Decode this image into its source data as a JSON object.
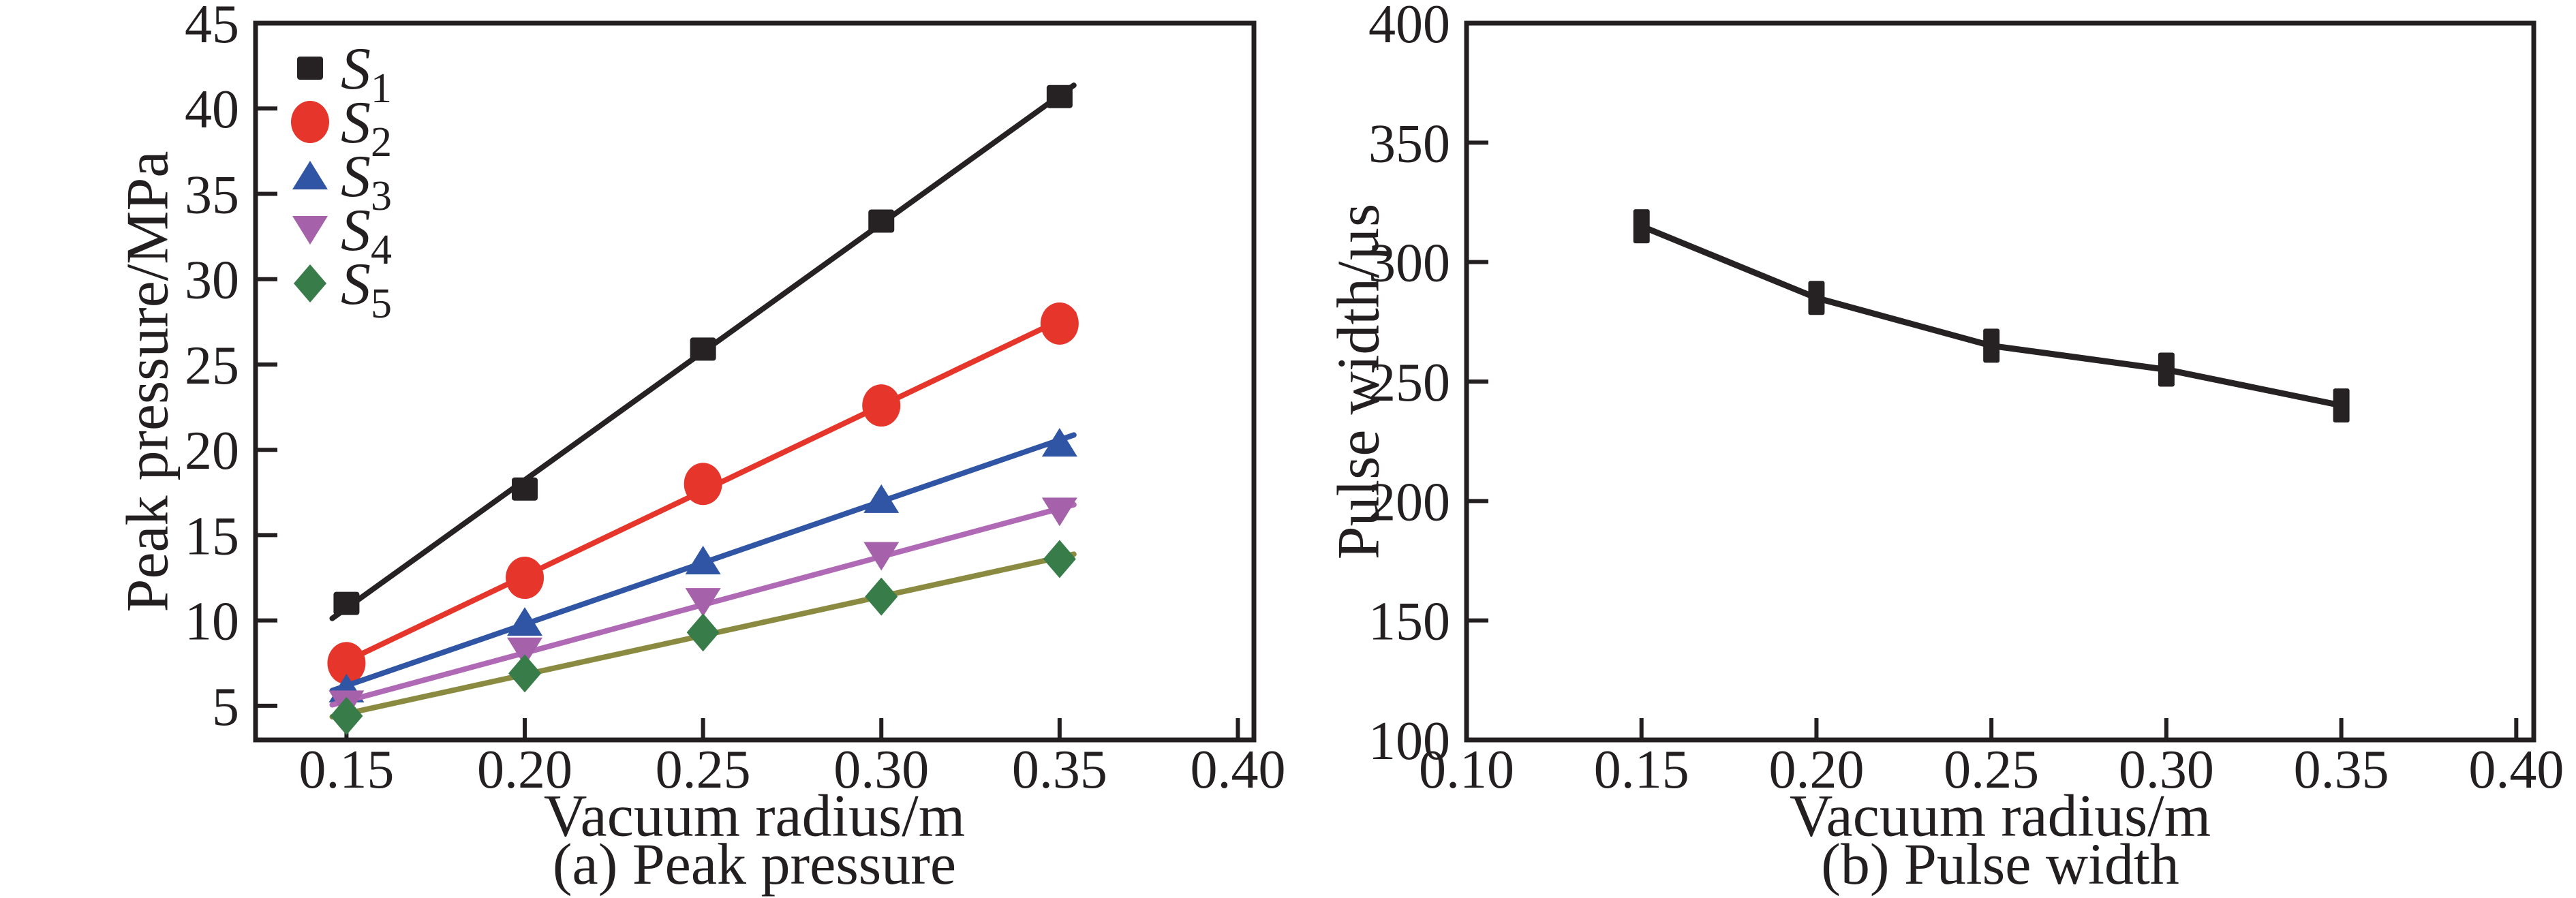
{
  "page": {
    "background": "#ffffff",
    "text_color": "#231f20"
  },
  "chart_data": [
    {
      "id": "a",
      "type": "line",
      "caption": "(a) Peak pressure",
      "xlabel": "Vacuum radius/m",
      "ylabel": "Peak pressure/MPa",
      "xlim": [
        0.1245,
        0.4045
      ],
      "ylim": [
        3,
        45
      ],
      "grid": false,
      "legend_position": "top-left",
      "xticks": [
        0.15,
        0.2,
        0.25,
        0.3,
        0.35,
        0.4
      ],
      "xtick_labels": [
        "0.15",
        "0.20",
        "0.25",
        "0.30",
        "0.35",
        "0.40"
      ],
      "yticks": [
        5,
        10,
        15,
        20,
        25,
        30,
        35,
        40,
        45
      ],
      "ytick_labels": [
        "5",
        "10",
        "15",
        "20",
        "25",
        "30",
        "35",
        "40",
        "45"
      ],
      "x": [
        0.15,
        0.2,
        0.25,
        0.3,
        0.35
      ],
      "series": [
        {
          "name": "S",
          "sub": "1",
          "marker": "square",
          "marker_color": "#262223",
          "line_color": "#262223",
          "line_style": "fit",
          "values": [
            11.0,
            17.7,
            25.9,
            33.4,
            40.7
          ]
        },
        {
          "name": "S",
          "sub": "2",
          "marker": "circle",
          "marker_color": "#e6352b",
          "line_color": "#e6352b",
          "line_style": "fit",
          "values": [
            7.5,
            12.5,
            18.0,
            22.6,
            27.4
          ]
        },
        {
          "name": "S",
          "sub": "3",
          "marker": "triangle-up",
          "marker_color": "#2f55a4",
          "line_color": "#2f55a4",
          "line_style": "fit",
          "values": [
            6.0,
            9.9,
            13.5,
            17.1,
            20.4
          ]
        },
        {
          "name": "S",
          "sub": "4",
          "marker": "triangle-down",
          "marker_color": "#a561aa",
          "line_color": "#b06ab5",
          "line_style": "fit",
          "values": [
            5.1,
            8.2,
            11.1,
            13.8,
            16.4
          ]
        },
        {
          "name": "S",
          "sub": "5",
          "marker": "diamond",
          "marker_color": "#377c49",
          "line_color": "#8a8a40",
          "line_style": "fit",
          "values": [
            4.4,
            6.9,
            9.3,
            11.4,
            13.6
          ]
        }
      ]
    },
    {
      "id": "b",
      "type": "line",
      "caption": "(b) Pulse width",
      "xlabel": "Vacuum radius/m",
      "ylabel": "Pulse width/µs",
      "xlim": [
        0.1,
        0.405
      ],
      "ylim": [
        100,
        400
      ],
      "grid": false,
      "legend_position": "none",
      "xticks": [
        0.1,
        0.15,
        0.2,
        0.25,
        0.3,
        0.35,
        0.4
      ],
      "xtick_labels": [
        "0.10",
        "0.15",
        "0.20",
        "0.25",
        "0.30",
        "0.35",
        "0.40"
      ],
      "yticks": [
        100,
        150,
        200,
        250,
        300,
        350,
        400
      ],
      "ytick_labels": [
        "100",
        "150",
        "200",
        "250",
        "300",
        "350",
        "400"
      ],
      "x": [
        0.15,
        0.2,
        0.25,
        0.3,
        0.35
      ],
      "series": [
        {
          "name": "Pulse width",
          "sub": "",
          "marker": "vrect",
          "marker_color": "#262223",
          "line_color": "#262223",
          "line_style": "segments",
          "values": [
            315,
            285,
            265,
            255,
            240
          ]
        }
      ]
    }
  ]
}
